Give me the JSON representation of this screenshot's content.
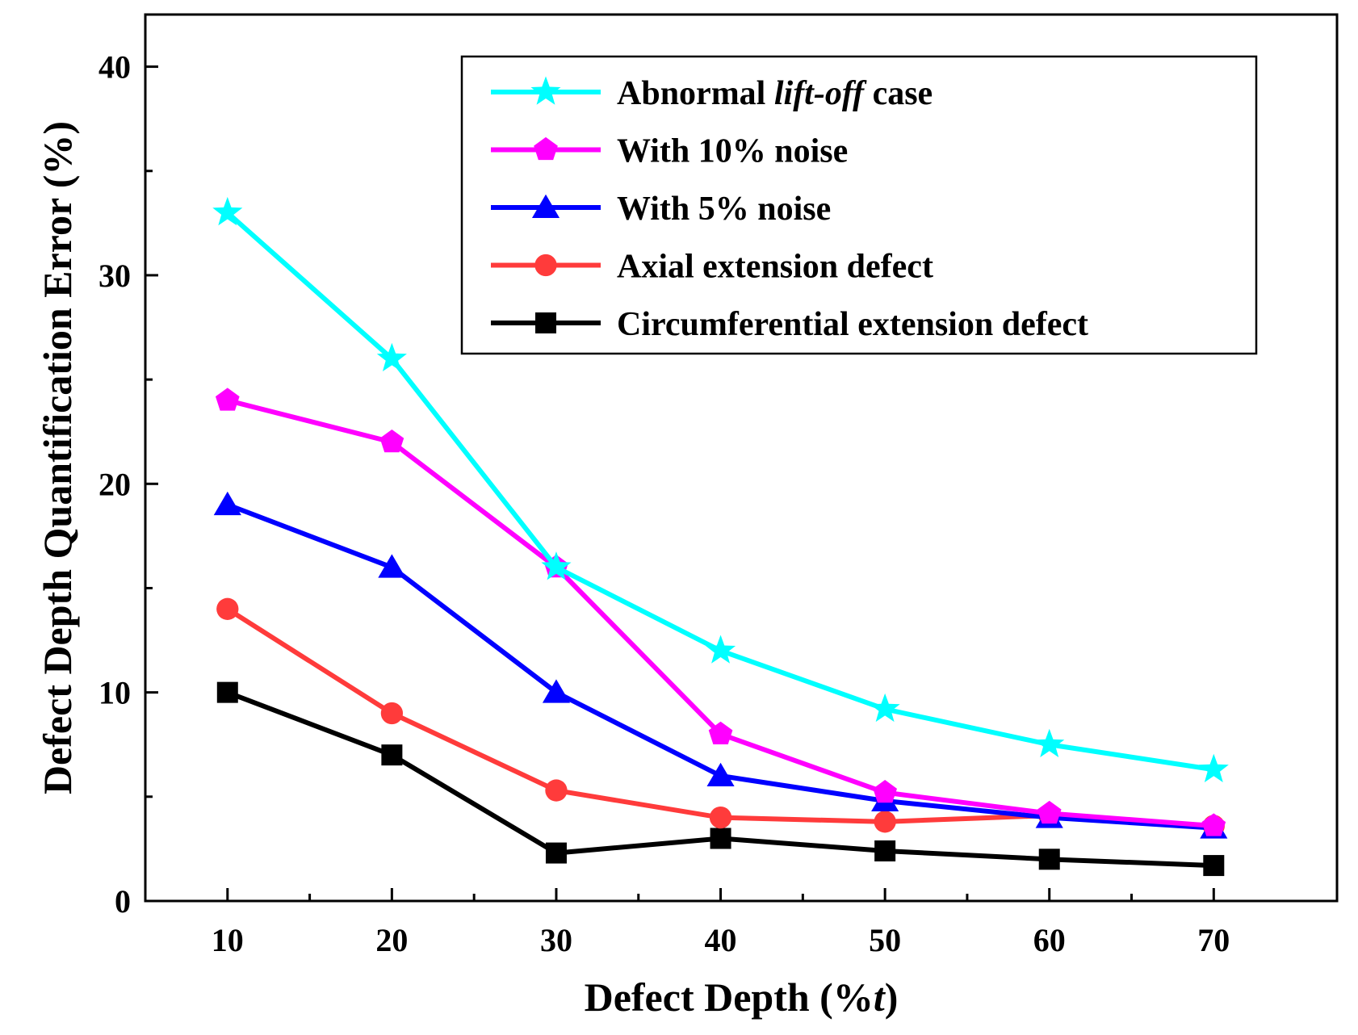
{
  "chart_data": {
    "type": "line",
    "title": "",
    "xlabel": "Defect Depth (%t)",
    "xlabel_prefix": "Defect Depth (%",
    "xlabel_italic": "t",
    "xlabel_suffix": ")",
    "ylabel": "Defect Depth Quantification Error (%)",
    "x": [
      10,
      20,
      30,
      40,
      50,
      60,
      70
    ],
    "xlim": [
      5,
      77.5
    ],
    "ylim": [
      0,
      42.5
    ],
    "xticks": [
      10,
      20,
      30,
      40,
      50,
      60,
      70
    ],
    "yticks": [
      0,
      10,
      20,
      30,
      40
    ],
    "legend_position": "top-right",
    "grid": false,
    "series": [
      {
        "name": "Abnormal lift-off case",
        "name_parts": [
          "Abnormal ",
          "lift-off",
          " case"
        ],
        "color": "#00FFFF",
        "marker": "star",
        "values": [
          33,
          26,
          16,
          12,
          9.2,
          7.5,
          6.3
        ]
      },
      {
        "name": "With 10% noise",
        "color": "#FF00FF",
        "marker": "pentagon",
        "values": [
          24,
          22,
          16,
          8,
          5.2,
          4.2,
          3.6
        ]
      },
      {
        "name": "With 5% noise",
        "color": "#0000FF",
        "marker": "triangle",
        "values": [
          19,
          16,
          10,
          6,
          4.8,
          4.0,
          3.5
        ]
      },
      {
        "name": "Axial extension defect",
        "color": "#FF3B3B",
        "marker": "circle",
        "values": [
          14,
          9,
          5.3,
          4.0,
          3.8,
          4.1,
          3.6
        ]
      },
      {
        "name": "Circumferential extension defect",
        "color": "#000000",
        "marker": "square",
        "values": [
          10,
          7,
          2.3,
          3.0,
          2.4,
          2.0,
          1.7
        ]
      }
    ]
  }
}
